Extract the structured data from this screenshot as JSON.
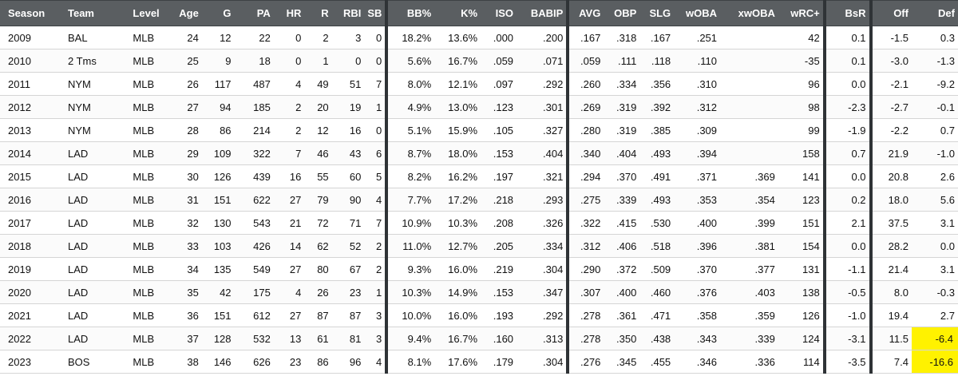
{
  "columns": [
    "Season",
    "Team",
    "Level",
    "Age",
    "G",
    "PA",
    "HR",
    "R",
    "RBI",
    "SB",
    "BB%",
    "K%",
    "ISO",
    "BABIP",
    "AVG",
    "OBP",
    "SLG",
    "wOBA",
    "xwOBA",
    "wRC+",
    "BsR",
    "Off",
    "Def"
  ],
  "rows": [
    {
      "season": "2009",
      "team": "BAL",
      "level": "MLB",
      "age": "24",
      "g": "12",
      "pa": "22",
      "hr": "0",
      "r": "2",
      "rbi": "3",
      "sb": "0",
      "bb": "18.2%",
      "k": "13.6%",
      "iso": ".000",
      "babip": ".200",
      "avg": ".167",
      "obp": ".318",
      "slg": ".167",
      "woba": ".251",
      "xwoba": "",
      "wrc": "42",
      "bsr": "0.1",
      "off": "-1.5",
      "def": "0.3"
    },
    {
      "season": "2010",
      "team": "2 Tms",
      "level": "MLB",
      "age": "25",
      "g": "9",
      "pa": "18",
      "hr": "0",
      "r": "1",
      "rbi": "0",
      "sb": "0",
      "bb": "5.6%",
      "k": "16.7%",
      "iso": ".059",
      "babip": ".071",
      "avg": ".059",
      "obp": ".111",
      "slg": ".118",
      "woba": ".110",
      "xwoba": "",
      "wrc": "-35",
      "bsr": "0.1",
      "off": "-3.0",
      "def": "-1.3"
    },
    {
      "season": "2011",
      "team": "NYM",
      "level": "MLB",
      "age": "26",
      "g": "117",
      "pa": "487",
      "hr": "4",
      "r": "49",
      "rbi": "51",
      "sb": "7",
      "bb": "8.0%",
      "k": "12.1%",
      "iso": ".097",
      "babip": ".292",
      "avg": ".260",
      "obp": ".334",
      "slg": ".356",
      "woba": ".310",
      "xwoba": "",
      "wrc": "96",
      "bsr": "0.0",
      "off": "-2.1",
      "def": "-9.2"
    },
    {
      "season": "2012",
      "team": "NYM",
      "level": "MLB",
      "age": "27",
      "g": "94",
      "pa": "185",
      "hr": "2",
      "r": "20",
      "rbi": "19",
      "sb": "1",
      "bb": "4.9%",
      "k": "13.0%",
      "iso": ".123",
      "babip": ".301",
      "avg": ".269",
      "obp": ".319",
      "slg": ".392",
      "woba": ".312",
      "xwoba": "",
      "wrc": "98",
      "bsr": "-2.3",
      "off": "-2.7",
      "def": "-0.1"
    },
    {
      "season": "2013",
      "team": "NYM",
      "level": "MLB",
      "age": "28",
      "g": "86",
      "pa": "214",
      "hr": "2",
      "r": "12",
      "rbi": "16",
      "sb": "0",
      "bb": "5.1%",
      "k": "15.9%",
      "iso": ".105",
      "babip": ".327",
      "avg": ".280",
      "obp": ".319",
      "slg": ".385",
      "woba": ".309",
      "xwoba": "",
      "wrc": "99",
      "bsr": "-1.9",
      "off": "-2.2",
      "def": "0.7"
    },
    {
      "season": "2014",
      "team": "LAD",
      "level": "MLB",
      "age": "29",
      "g": "109",
      "pa": "322",
      "hr": "7",
      "r": "46",
      "rbi": "43",
      "sb": "6",
      "bb": "8.7%",
      "k": "18.0%",
      "iso": ".153",
      "babip": ".404",
      "avg": ".340",
      "obp": ".404",
      "slg": ".493",
      "woba": ".394",
      "xwoba": "",
      "wrc": "158",
      "bsr": "0.7",
      "off": "21.9",
      "def": "-1.0"
    },
    {
      "season": "2015",
      "team": "LAD",
      "level": "MLB",
      "age": "30",
      "g": "126",
      "pa": "439",
      "hr": "16",
      "r": "55",
      "rbi": "60",
      "sb": "5",
      "bb": "8.2%",
      "k": "16.2%",
      "iso": ".197",
      "babip": ".321",
      "avg": ".294",
      "obp": ".370",
      "slg": ".491",
      "woba": ".371",
      "xwoba": ".369",
      "wrc": "141",
      "bsr": "0.0",
      "off": "20.8",
      "def": "2.6"
    },
    {
      "season": "2016",
      "team": "LAD",
      "level": "MLB",
      "age": "31",
      "g": "151",
      "pa": "622",
      "hr": "27",
      "r": "79",
      "rbi": "90",
      "sb": "4",
      "bb": "7.7%",
      "k": "17.2%",
      "iso": ".218",
      "babip": ".293",
      "avg": ".275",
      "obp": ".339",
      "slg": ".493",
      "woba": ".353",
      "xwoba": ".354",
      "wrc": "123",
      "bsr": "0.2",
      "off": "18.0",
      "def": "5.6"
    },
    {
      "season": "2017",
      "team": "LAD",
      "level": "MLB",
      "age": "32",
      "g": "130",
      "pa": "543",
      "hr": "21",
      "r": "72",
      "rbi": "71",
      "sb": "7",
      "bb": "10.9%",
      "k": "10.3%",
      "iso": ".208",
      "babip": ".326",
      "avg": ".322",
      "obp": ".415",
      "slg": ".530",
      "woba": ".400",
      "xwoba": ".399",
      "wrc": "151",
      "bsr": "2.1",
      "off": "37.5",
      "def": "3.1"
    },
    {
      "season": "2018",
      "team": "LAD",
      "level": "MLB",
      "age": "33",
      "g": "103",
      "pa": "426",
      "hr": "14",
      "r": "62",
      "rbi": "52",
      "sb": "2",
      "bb": "11.0%",
      "k": "12.7%",
      "iso": ".205",
      "babip": ".334",
      "avg": ".312",
      "obp": ".406",
      "slg": ".518",
      "woba": ".396",
      "xwoba": ".381",
      "wrc": "154",
      "bsr": "0.0",
      "off": "28.2",
      "def": "0.0"
    },
    {
      "season": "2019",
      "team": "LAD",
      "level": "MLB",
      "age": "34",
      "g": "135",
      "pa": "549",
      "hr": "27",
      "r": "80",
      "rbi": "67",
      "sb": "2",
      "bb": "9.3%",
      "k": "16.0%",
      "iso": ".219",
      "babip": ".304",
      "avg": ".290",
      "obp": ".372",
      "slg": ".509",
      "woba": ".370",
      "xwoba": ".377",
      "wrc": "131",
      "bsr": "-1.1",
      "off": "21.4",
      "def": "3.1"
    },
    {
      "season": "2020",
      "team": "LAD",
      "level": "MLB",
      "age": "35",
      "g": "42",
      "pa": "175",
      "hr": "4",
      "r": "26",
      "rbi": "23",
      "sb": "1",
      "bb": "10.3%",
      "k": "14.9%",
      "iso": ".153",
      "babip": ".347",
      "avg": ".307",
      "obp": ".400",
      "slg": ".460",
      "woba": ".376",
      "xwoba": ".403",
      "wrc": "138",
      "bsr": "-0.5",
      "off": "8.0",
      "def": "-0.3"
    },
    {
      "season": "2021",
      "team": "LAD",
      "level": "MLB",
      "age": "36",
      "g": "151",
      "pa": "612",
      "hr": "27",
      "r": "87",
      "rbi": "87",
      "sb": "3",
      "bb": "10.0%",
      "k": "16.0%",
      "iso": ".193",
      "babip": ".292",
      "avg": ".278",
      "obp": ".361",
      "slg": ".471",
      "woba": ".358",
      "xwoba": ".359",
      "wrc": "126",
      "bsr": "-1.0",
      "off": "19.4",
      "def": "2.7"
    },
    {
      "season": "2022",
      "team": "LAD",
      "level": "MLB",
      "age": "37",
      "g": "128",
      "pa": "532",
      "hr": "13",
      "r": "61",
      "rbi": "81",
      "sb": "3",
      "bb": "9.4%",
      "k": "16.7%",
      "iso": ".160",
      "babip": ".313",
      "avg": ".278",
      "obp": ".350",
      "slg": ".438",
      "woba": ".343",
      "xwoba": ".339",
      "wrc": "124",
      "bsr": "-3.1",
      "off": "11.5",
      "def": "-6.4",
      "def_highlight": true
    },
    {
      "season": "2023",
      "team": "BOS",
      "level": "MLB",
      "age": "38",
      "g": "146",
      "pa": "626",
      "hr": "23",
      "r": "86",
      "rbi": "96",
      "sb": "4",
      "bb": "8.1%",
      "k": "17.6%",
      "iso": ".179",
      "babip": ".304",
      "avg": ".276",
      "obp": ".345",
      "slg": ".455",
      "woba": ".346",
      "xwoba": ".336",
      "wrc": "114",
      "bsr": "-3.5",
      "off": "7.4",
      "def": "-16.6",
      "def_highlight": true
    }
  ],
  "colors": {
    "header_bg": "#5a5e61",
    "header_text": "#ffffff",
    "highlight": "#fff200",
    "separator": "#2f3336"
  }
}
